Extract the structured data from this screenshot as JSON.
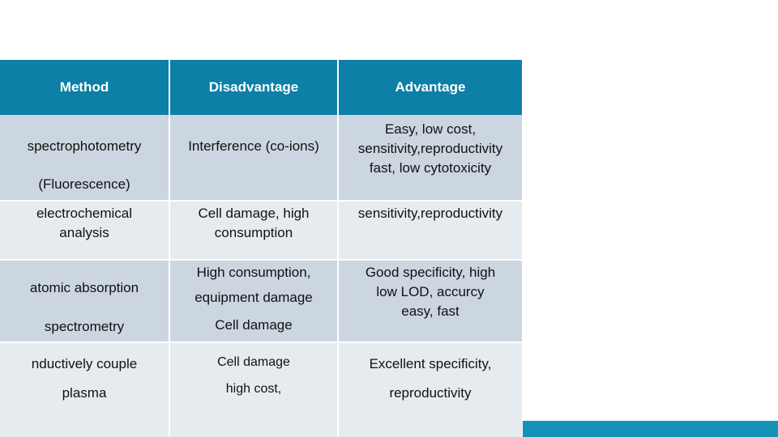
{
  "table": {
    "headers": {
      "method": "Method",
      "disadvantage": "Disadvantage",
      "advantage": "Advantage"
    },
    "rows": [
      {
        "method": [
          "spectrophotometry",
          "(Fluorescence)"
        ],
        "disadvantage": [
          "Interference (co-ions)"
        ],
        "advantage": [
          "Easy, low cost,",
          "sensitivity,reproductivity",
          "fast, low cytotoxicity"
        ]
      },
      {
        "method": [
          "electrochemical",
          "analysis"
        ],
        "disadvantage": [
          "Cell damage, high",
          "consumption"
        ],
        "advantage": [
          "sensitivity,reproductivity"
        ]
      },
      {
        "method": [
          "atomic absorption",
          "spectrometry"
        ],
        "disadvantage": [
          "High consumption,",
          "equipment damage",
          "Cell damage"
        ],
        "advantage": [
          "Good specificity, high",
          "low LOD, accurcy",
          "easy, fast"
        ]
      },
      {
        "method": [
          "nductively couple",
          "plasma"
        ],
        "disadvantage": [
          "Cell damage",
          "high cost,"
        ],
        "advantage": [
          "Excellent specificity,",
          "reproductivity"
        ]
      }
    ]
  },
  "colors": {
    "header": "#0e7fa6",
    "row_dark": "#ccd6e0",
    "row_light": "#e6ebf0",
    "accent_bar": "#1493b8"
  }
}
